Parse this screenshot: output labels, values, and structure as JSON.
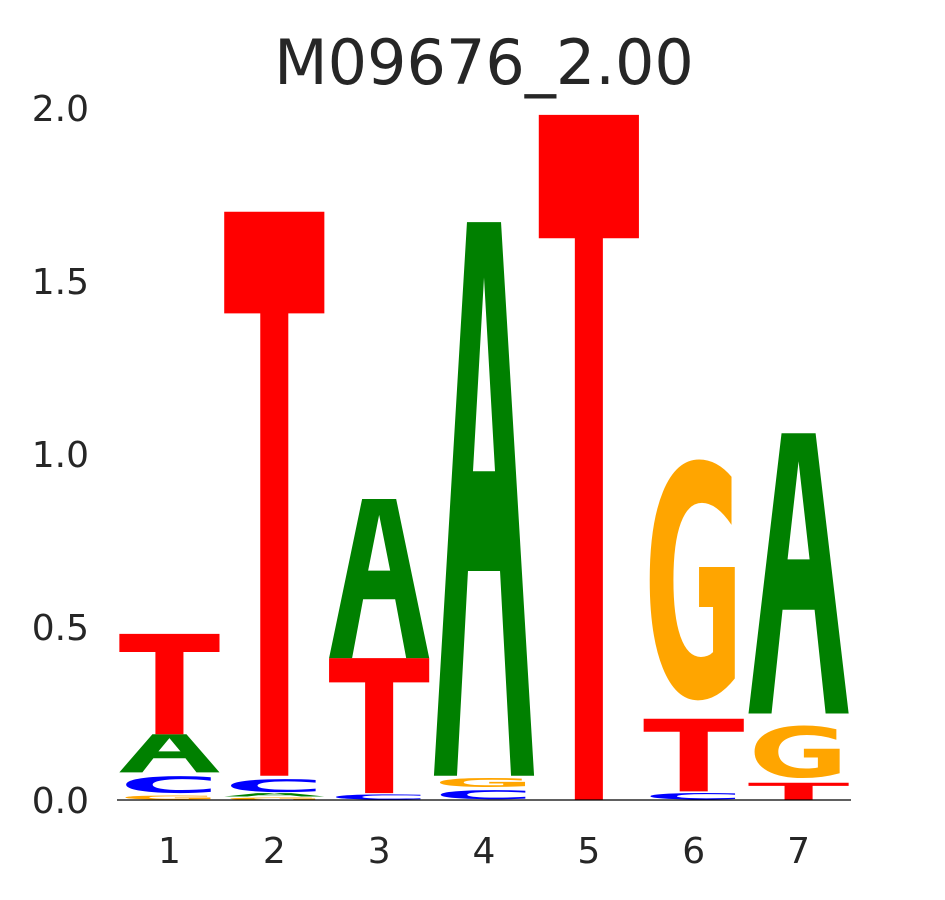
{
  "chart_data": {
    "type": "sequence-logo",
    "title": "M09676_2.00",
    "xlabel": "",
    "ylabel": "",
    "ylim": [
      0,
      2
    ],
    "yticks": [
      "0.0",
      "0.5",
      "1.0",
      "1.5",
      "2.0"
    ],
    "grid": false,
    "legend": "none",
    "colors": {
      "A": "#008000",
      "C": "#0000ff",
      "G": "#ffa500",
      "T": "#ff0000"
    },
    "positions": [
      {
        "label": "1",
        "stack": [
          {
            "base": "G",
            "height": 0.015
          },
          {
            "base": "C",
            "height": 0.065
          },
          {
            "base": "A",
            "height": 0.11
          },
          {
            "base": "T",
            "height": 0.29
          }
        ]
      },
      {
        "label": "2",
        "stack": [
          {
            "base": "G",
            "height": 0.01
          },
          {
            "base": "A",
            "height": 0.01
          },
          {
            "base": "C",
            "height": 0.05
          },
          {
            "base": "T",
            "height": 1.63
          }
        ]
      },
      {
        "label": "3",
        "stack": [
          {
            "base": "C",
            "height": 0.02
          },
          {
            "base": "T",
            "height": 0.39
          },
          {
            "base": "A",
            "height": 0.46
          }
        ]
      },
      {
        "label": "4",
        "stack": [
          {
            "base": "C",
            "height": 0.035
          },
          {
            "base": "G",
            "height": 0.035
          },
          {
            "base": "A",
            "height": 1.6
          }
        ]
      },
      {
        "label": "5",
        "stack": [
          {
            "base": "T",
            "height": 1.98
          }
        ]
      },
      {
        "label": "6",
        "stack": [
          {
            "base": "C",
            "height": 0.025
          },
          {
            "base": "T",
            "height": 0.21
          },
          {
            "base": "G",
            "height": 0.92
          }
        ]
      },
      {
        "label": "7",
        "stack": [
          {
            "base": "T",
            "height": 0.05
          },
          {
            "base": "G",
            "height": 0.2
          },
          {
            "base": "A",
            "height": 0.81
          }
        ]
      }
    ]
  }
}
